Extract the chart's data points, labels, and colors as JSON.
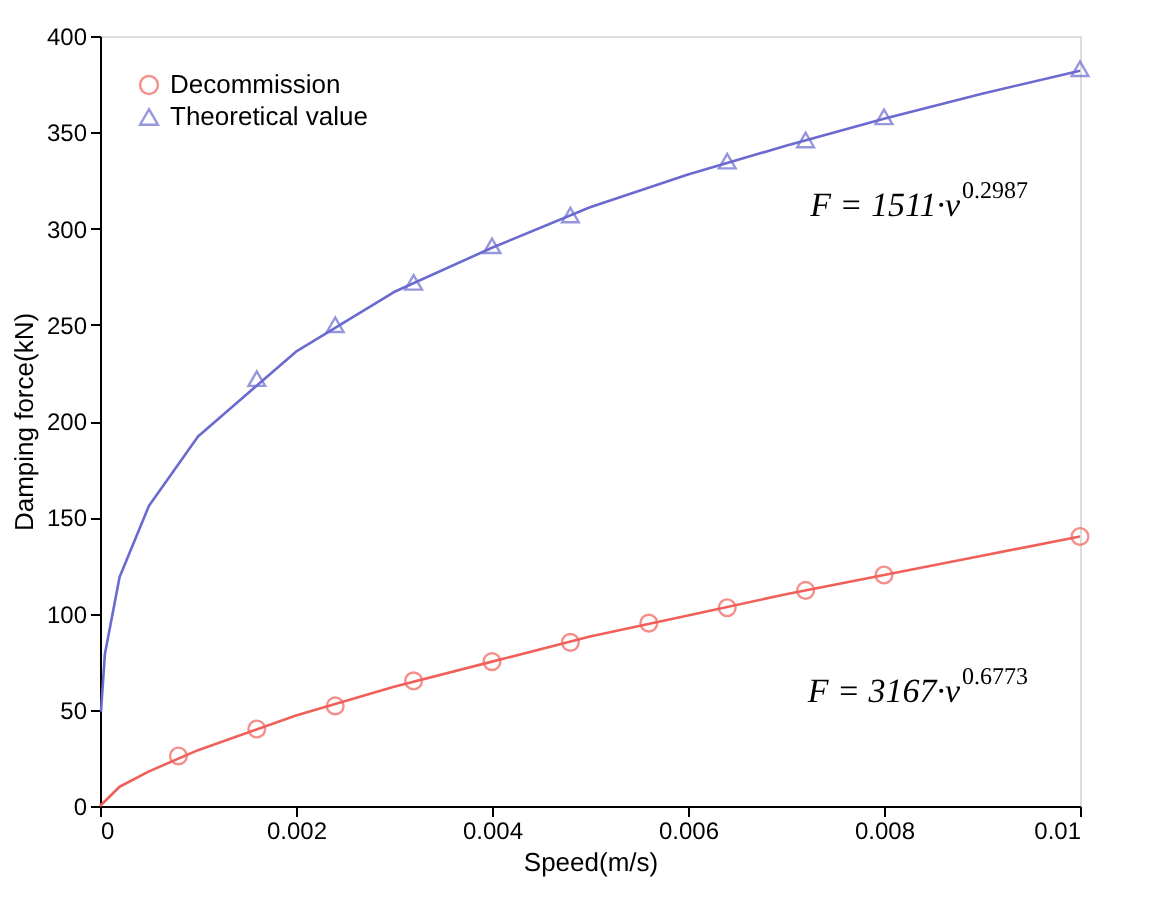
{
  "chart_data": {
    "type": "scatter",
    "xlabel": "Speed(m/s)",
    "ylabel": "Damping force(kN)",
    "xlim": [
      0,
      0.01
    ],
    "ylim": [
      0,
      400
    ],
    "xticks": [
      0,
      0.002,
      0.004,
      0.006,
      0.008,
      0.01
    ],
    "yticks": [
      0,
      50,
      100,
      150,
      200,
      250,
      300,
      350,
      400
    ],
    "grid": false,
    "legend": "top left",
    "series": [
      {
        "name": "Decommission",
        "marker": "circle",
        "color": "#f0605a",
        "x": [
          0.0008,
          0.0016,
          0.0024,
          0.0032,
          0.004,
          0.0048,
          0.0056,
          0.0064,
          0.0072,
          0.008,
          0.01
        ],
        "values": [
          26,
          40,
          52,
          65,
          75,
          85,
          95,
          103,
          112,
          120,
          140
        ]
      },
      {
        "name": "Theoretical value",
        "marker": "triangle",
        "color": "#6a6ad0",
        "x": [
          0.0016,
          0.0024,
          0.0032,
          0.004,
          0.0048,
          0.0064,
          0.0072,
          0.008,
          0.01
        ],
        "values": [
          222,
          250,
          272,
          291,
          307,
          335,
          346,
          358,
          383
        ]
      },
      {
        "type": "line",
        "marker": "none",
        "color": "#f0605a",
        "x": [
          0,
          0.0002,
          0.0005,
          0.001,
          0.002,
          0.003,
          0.004,
          0.005,
          0.006,
          0.007,
          0.008,
          0.009,
          0.01
        ],
        "values": [
          0,
          10,
          18,
          29,
          47,
          62,
          75,
          88,
          99,
          110,
          120,
          130,
          140
        ]
      },
      {
        "type": "line",
        "marker": "none",
        "color": "#6a6ad0",
        "x": [
          1e-05,
          5e-05,
          0.0002,
          0.0005,
          0.001,
          0.002,
          0.003,
          0.004,
          0.005,
          0.006,
          0.007,
          0.008,
          0.009,
          0.01
        ],
        "values": [
          49,
          79,
          119,
          156,
          192,
          236,
          267,
          290,
          311,
          328,
          343,
          357,
          370,
          382
        ]
      }
    ],
    "annotations": [
      "F = 1511·v$^{0.2987}$",
      "F = 3167·v$^{0.6773}$"
    ]
  }
}
